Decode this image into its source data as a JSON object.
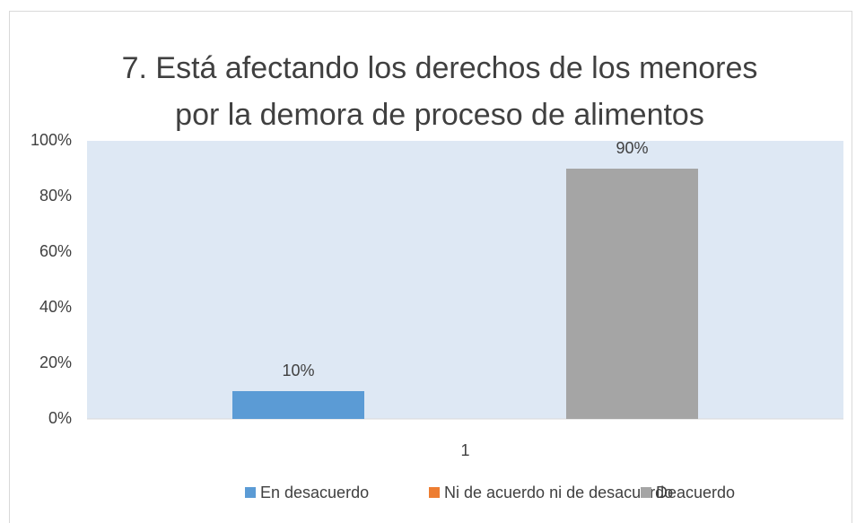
{
  "chart_data": {
    "type": "bar",
    "title": [
      "7. Está afectando los derechos de los menores",
      "por la demora de proceso de alimentos"
    ],
    "categories": [
      "1"
    ],
    "series": [
      {
        "name": "En desacuerdo",
        "color": "#5b9bd5",
        "values": [
          10
        ],
        "value_labels": [
          "10%"
        ]
      },
      {
        "name": "Ni de acuerdo ni de desacuerdo",
        "color": "#ed7d31",
        "values": [
          0
        ]
      },
      {
        "name": "Deacuerdo",
        "color": "#a5a5a5",
        "values": [
          90
        ],
        "value_labels": [
          "90%"
        ]
      }
    ],
    "ylim": [
      0,
      100
    ],
    "yticks": [
      {
        "value": 0,
        "label": "0%"
      },
      {
        "value": 20,
        "label": "20%"
      },
      {
        "value": 40,
        "label": "40%"
      },
      {
        "value": 60,
        "label": "60%"
      },
      {
        "value": 80,
        "label": "80%"
      },
      {
        "value": 100,
        "label": "100%"
      }
    ],
    "legend": "bottom"
  }
}
